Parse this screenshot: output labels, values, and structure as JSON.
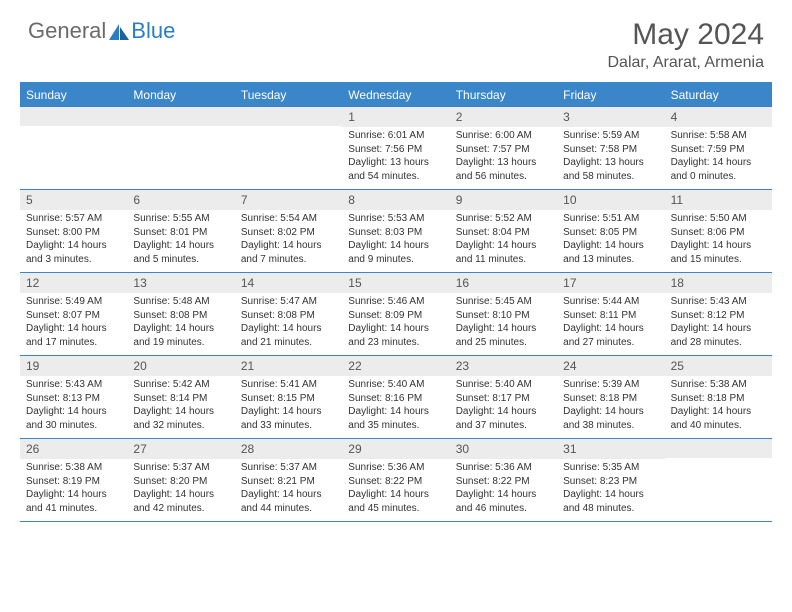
{
  "brand": {
    "part1": "General",
    "part2": "Blue"
  },
  "title": "May 2024",
  "location": "Dalar, Ararat, Armenia",
  "dayNames": [
    "Sunday",
    "Monday",
    "Tuesday",
    "Wednesday",
    "Thursday",
    "Friday",
    "Saturday"
  ],
  "colors": {
    "headerBlue": "#3a86c8",
    "cellStripe": "#ececec",
    "text": "#333333"
  },
  "weeks": [
    [
      {
        "n": "",
        "sr": "",
        "ss": "",
        "d1": "",
        "d2": ""
      },
      {
        "n": "",
        "sr": "",
        "ss": "",
        "d1": "",
        "d2": ""
      },
      {
        "n": "",
        "sr": "",
        "ss": "",
        "d1": "",
        "d2": ""
      },
      {
        "n": "1",
        "sr": "Sunrise: 6:01 AM",
        "ss": "Sunset: 7:56 PM",
        "d1": "Daylight: 13 hours",
        "d2": "and 54 minutes."
      },
      {
        "n": "2",
        "sr": "Sunrise: 6:00 AM",
        "ss": "Sunset: 7:57 PM",
        "d1": "Daylight: 13 hours",
        "d2": "and 56 minutes."
      },
      {
        "n": "3",
        "sr": "Sunrise: 5:59 AM",
        "ss": "Sunset: 7:58 PM",
        "d1": "Daylight: 13 hours",
        "d2": "and 58 minutes."
      },
      {
        "n": "4",
        "sr": "Sunrise: 5:58 AM",
        "ss": "Sunset: 7:59 PM",
        "d1": "Daylight: 14 hours",
        "d2": "and 0 minutes."
      }
    ],
    [
      {
        "n": "5",
        "sr": "Sunrise: 5:57 AM",
        "ss": "Sunset: 8:00 PM",
        "d1": "Daylight: 14 hours",
        "d2": "and 3 minutes."
      },
      {
        "n": "6",
        "sr": "Sunrise: 5:55 AM",
        "ss": "Sunset: 8:01 PM",
        "d1": "Daylight: 14 hours",
        "d2": "and 5 minutes."
      },
      {
        "n": "7",
        "sr": "Sunrise: 5:54 AM",
        "ss": "Sunset: 8:02 PM",
        "d1": "Daylight: 14 hours",
        "d2": "and 7 minutes."
      },
      {
        "n": "8",
        "sr": "Sunrise: 5:53 AM",
        "ss": "Sunset: 8:03 PM",
        "d1": "Daylight: 14 hours",
        "d2": "and 9 minutes."
      },
      {
        "n": "9",
        "sr": "Sunrise: 5:52 AM",
        "ss": "Sunset: 8:04 PM",
        "d1": "Daylight: 14 hours",
        "d2": "and 11 minutes."
      },
      {
        "n": "10",
        "sr": "Sunrise: 5:51 AM",
        "ss": "Sunset: 8:05 PM",
        "d1": "Daylight: 14 hours",
        "d2": "and 13 minutes."
      },
      {
        "n": "11",
        "sr": "Sunrise: 5:50 AM",
        "ss": "Sunset: 8:06 PM",
        "d1": "Daylight: 14 hours",
        "d2": "and 15 minutes."
      }
    ],
    [
      {
        "n": "12",
        "sr": "Sunrise: 5:49 AM",
        "ss": "Sunset: 8:07 PM",
        "d1": "Daylight: 14 hours",
        "d2": "and 17 minutes."
      },
      {
        "n": "13",
        "sr": "Sunrise: 5:48 AM",
        "ss": "Sunset: 8:08 PM",
        "d1": "Daylight: 14 hours",
        "d2": "and 19 minutes."
      },
      {
        "n": "14",
        "sr": "Sunrise: 5:47 AM",
        "ss": "Sunset: 8:08 PM",
        "d1": "Daylight: 14 hours",
        "d2": "and 21 minutes."
      },
      {
        "n": "15",
        "sr": "Sunrise: 5:46 AM",
        "ss": "Sunset: 8:09 PM",
        "d1": "Daylight: 14 hours",
        "d2": "and 23 minutes."
      },
      {
        "n": "16",
        "sr": "Sunrise: 5:45 AM",
        "ss": "Sunset: 8:10 PM",
        "d1": "Daylight: 14 hours",
        "d2": "and 25 minutes."
      },
      {
        "n": "17",
        "sr": "Sunrise: 5:44 AM",
        "ss": "Sunset: 8:11 PM",
        "d1": "Daylight: 14 hours",
        "d2": "and 27 minutes."
      },
      {
        "n": "18",
        "sr": "Sunrise: 5:43 AM",
        "ss": "Sunset: 8:12 PM",
        "d1": "Daylight: 14 hours",
        "d2": "and 28 minutes."
      }
    ],
    [
      {
        "n": "19",
        "sr": "Sunrise: 5:43 AM",
        "ss": "Sunset: 8:13 PM",
        "d1": "Daylight: 14 hours",
        "d2": "and 30 minutes."
      },
      {
        "n": "20",
        "sr": "Sunrise: 5:42 AM",
        "ss": "Sunset: 8:14 PM",
        "d1": "Daylight: 14 hours",
        "d2": "and 32 minutes."
      },
      {
        "n": "21",
        "sr": "Sunrise: 5:41 AM",
        "ss": "Sunset: 8:15 PM",
        "d1": "Daylight: 14 hours",
        "d2": "and 33 minutes."
      },
      {
        "n": "22",
        "sr": "Sunrise: 5:40 AM",
        "ss": "Sunset: 8:16 PM",
        "d1": "Daylight: 14 hours",
        "d2": "and 35 minutes."
      },
      {
        "n": "23",
        "sr": "Sunrise: 5:40 AM",
        "ss": "Sunset: 8:17 PM",
        "d1": "Daylight: 14 hours",
        "d2": "and 37 minutes."
      },
      {
        "n": "24",
        "sr": "Sunrise: 5:39 AM",
        "ss": "Sunset: 8:18 PM",
        "d1": "Daylight: 14 hours",
        "d2": "and 38 minutes."
      },
      {
        "n": "25",
        "sr": "Sunrise: 5:38 AM",
        "ss": "Sunset: 8:18 PM",
        "d1": "Daylight: 14 hours",
        "d2": "and 40 minutes."
      }
    ],
    [
      {
        "n": "26",
        "sr": "Sunrise: 5:38 AM",
        "ss": "Sunset: 8:19 PM",
        "d1": "Daylight: 14 hours",
        "d2": "and 41 minutes."
      },
      {
        "n": "27",
        "sr": "Sunrise: 5:37 AM",
        "ss": "Sunset: 8:20 PM",
        "d1": "Daylight: 14 hours",
        "d2": "and 42 minutes."
      },
      {
        "n": "28",
        "sr": "Sunrise: 5:37 AM",
        "ss": "Sunset: 8:21 PM",
        "d1": "Daylight: 14 hours",
        "d2": "and 44 minutes."
      },
      {
        "n": "29",
        "sr": "Sunrise: 5:36 AM",
        "ss": "Sunset: 8:22 PM",
        "d1": "Daylight: 14 hours",
        "d2": "and 45 minutes."
      },
      {
        "n": "30",
        "sr": "Sunrise: 5:36 AM",
        "ss": "Sunset: 8:22 PM",
        "d1": "Daylight: 14 hours",
        "d2": "and 46 minutes."
      },
      {
        "n": "31",
        "sr": "Sunrise: 5:35 AM",
        "ss": "Sunset: 8:23 PM",
        "d1": "Daylight: 14 hours",
        "d2": "and 48 minutes."
      },
      {
        "n": "",
        "sr": "",
        "ss": "",
        "d1": "",
        "d2": ""
      }
    ]
  ]
}
